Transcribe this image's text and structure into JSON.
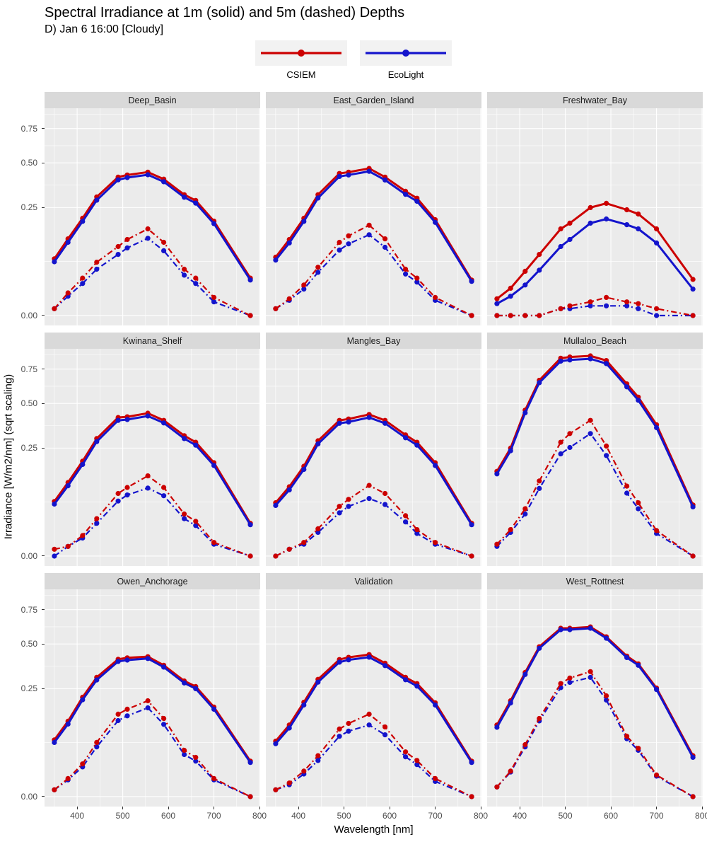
{
  "header": {
    "title": "Spectral Irradiance at 1m (solid) and 5m (dashed) Depths",
    "subtitle": "D) Jan 6 16:00 [Cloudy]"
  },
  "legend": {
    "items": [
      {
        "label": "CSIEM",
        "color": "#CC0000"
      },
      {
        "label": "EcoLight",
        "color": "#1414CC"
      }
    ]
  },
  "axes": {
    "x_title": "Wavelength [nm]",
    "y_title": "Irradiance [W/m2/nm] (sqrt scaling)",
    "x_tick_values": [
      400,
      500,
      600,
      700,
      800
    ],
    "x_tick_labels": [
      "400",
      "500",
      "600",
      "700",
      "800"
    ],
    "y_tick_values": [
      0,
      0.25,
      0.5,
      0.75
    ],
    "y_tick_labels": [
      "0.00",
      "0.25",
      "0.50",
      "0.75"
    ]
  },
  "colors": {
    "panel_bg": "#EBEBEB",
    "strip_bg": "#D9D9D9",
    "grid": "#FFFFFF",
    "tick_text": "#4D4D4D",
    "csiem": "#CC0000",
    "ecolight": "#1414CC"
  },
  "chart_data": {
    "type": "line",
    "title": "Spectral Irradiance at 1m (solid) and 5m (dashed) Depths",
    "subtitle": "D) Jan 6 16:00 [Cloudy]",
    "xlabel": "Wavelength [nm]",
    "ylabel": "Irradiance [W/m2/nm] (sqrt scaling)",
    "y_scale": "sqrt",
    "x_range": [
      328.5,
      801.5
    ],
    "y_range_sqrt_space": [
      -0.046,
      0.96
    ],
    "grid": true,
    "legend_position": "top",
    "x": [
      350,
      380,
      412,
      443,
      490,
      510,
      555,
      590,
      635,
      660,
      700,
      780
    ],
    "series_meta": [
      {
        "key": "csiem_1m",
        "model": "CSIEM",
        "depth": "1m",
        "style": "solid",
        "color": "#CC0000"
      },
      {
        "key": "ecolight_1m",
        "model": "EcoLight",
        "depth": "1m",
        "style": "solid",
        "color": "#1414CC"
      },
      {
        "key": "ecolight_5m",
        "model": "EcoLight",
        "depth": "5m",
        "style": "dashed",
        "color": "#1414CC"
      },
      {
        "key": "csiem_5m",
        "model": "CSIEM",
        "depth": "5m",
        "style": "dashed",
        "color": "#CC0000"
      }
    ],
    "facets": [
      {
        "name": "Deep_Basin",
        "csiem_1m": [
          0.069,
          0.126,
          0.203,
          0.302,
          0.411,
          0.424,
          0.441,
          0.399,
          0.313,
          0.284,
          0.191,
          0.03
        ],
        "ecolight_1m": [
          0.062,
          0.115,
          0.19,
          0.285,
          0.395,
          0.408,
          0.425,
          0.384,
          0.3,
          0.271,
          0.181,
          0.027
        ],
        "csiem_5m": [
          0.001,
          0.011,
          0.03,
          0.061,
          0.102,
          0.124,
          0.161,
          0.115,
          0.046,
          0.03,
          0.007,
          0.0
        ],
        "ecolight_5m": [
          0.001,
          0.008,
          0.022,
          0.046,
          0.08,
          0.098,
          0.128,
          0.09,
          0.035,
          0.022,
          0.004,
          0.0
        ]
      },
      {
        "name": "East_Garden_Island",
        "csiem_1m": [
          0.073,
          0.124,
          0.203,
          0.313,
          0.433,
          0.441,
          0.464,
          0.411,
          0.331,
          0.295,
          0.197,
          0.027
        ],
        "ecolight_1m": [
          0.066,
          0.113,
          0.19,
          0.296,
          0.415,
          0.424,
          0.446,
          0.394,
          0.315,
          0.28,
          0.186,
          0.025
        ],
        "csiem_5m": [
          0.001,
          0.006,
          0.02,
          0.05,
          0.115,
          0.136,
          0.175,
          0.126,
          0.046,
          0.03,
          0.007,
          0.0
        ],
        "ecolight_5m": [
          0.001,
          0.005,
          0.015,
          0.04,
          0.092,
          0.11,
          0.14,
          0.1,
          0.037,
          0.024,
          0.005,
          0.0
        ]
      },
      {
        "name": "Freshwater_Bay",
        "csiem_1m": [
          0.006,
          0.016,
          0.042,
          0.08,
          0.161,
          0.183,
          0.25,
          0.27,
          0.24,
          0.221,
          0.161,
          0.028
        ],
        "ecolight_1m": [
          0.003,
          0.008,
          0.02,
          0.044,
          0.102,
          0.124,
          0.183,
          0.2,
          0.177,
          0.161,
          0.113,
          0.015
        ],
        "csiem_5m": [
          0.0,
          0.0,
          0.0,
          0.0,
          0.001,
          0.002,
          0.004,
          0.007,
          0.004,
          0.003,
          0.001,
          0.0
        ],
        "ecolight_5m": [
          0.0,
          0.0,
          0.0,
          0.0,
          0.001,
          0.001,
          0.002,
          0.002,
          0.002,
          0.001,
          0.0,
          0.0
        ]
      },
      {
        "name": "Kwinana_Shelf",
        "csiem_1m": [
          0.064,
          0.116,
          0.193,
          0.296,
          0.412,
          0.416,
          0.438,
          0.395,
          0.311,
          0.278,
          0.187,
          0.023
        ],
        "ecolight_1m": [
          0.058,
          0.106,
          0.18,
          0.281,
          0.395,
          0.4,
          0.421,
          0.38,
          0.296,
          0.264,
          0.176,
          0.021
        ],
        "csiem_5m": [
          0.001,
          0.002,
          0.009,
          0.03,
          0.084,
          0.101,
          0.138,
          0.101,
          0.038,
          0.026,
          0.004,
          0.0
        ],
        "ecolight_5m": [
          0.0,
          0.002,
          0.007,
          0.023,
          0.065,
          0.08,
          0.099,
          0.078,
          0.03,
          0.02,
          0.003,
          0.0
        ]
      },
      {
        "name": "Mangles_Bay",
        "csiem_1m": [
          0.061,
          0.103,
          0.173,
          0.285,
          0.395,
          0.403,
          0.43,
          0.395,
          0.315,
          0.278,
          0.187,
          0.023
        ],
        "ecolight_1m": [
          0.055,
          0.094,
          0.161,
          0.27,
          0.378,
          0.386,
          0.412,
          0.378,
          0.3,
          0.264,
          0.176,
          0.021
        ],
        "csiem_5m": [
          0.0,
          0.001,
          0.004,
          0.016,
          0.053,
          0.069,
          0.107,
          0.084,
          0.035,
          0.015,
          0.004,
          0.0
        ],
        "ecolight_5m": [
          0.0,
          0.001,
          0.003,
          0.012,
          0.04,
          0.053,
          0.071,
          0.057,
          0.025,
          0.011,
          0.003,
          0.0
        ]
      },
      {
        "name": "Mullaloo_Beach",
        "csiem_1m": [
          0.154,
          0.25,
          0.457,
          0.663,
          0.84,
          0.85,
          0.86,
          0.82,
          0.636,
          0.542,
          0.37,
          0.056
        ],
        "ecolight_1m": [
          0.145,
          0.238,
          0.44,
          0.645,
          0.815,
          0.825,
          0.835,
          0.795,
          0.614,
          0.521,
          0.354,
          0.052
        ],
        "csiem_5m": [
          0.003,
          0.015,
          0.048,
          0.121,
          0.278,
          0.322,
          0.395,
          0.26,
          0.105,
          0.061,
          0.014,
          0.0
        ],
        "ecolight_5m": [
          0.002,
          0.012,
          0.038,
          0.098,
          0.224,
          0.253,
          0.322,
          0.217,
          0.085,
          0.048,
          0.011,
          0.0
        ]
      },
      {
        "name": "Owen_Anchorage",
        "csiem_1m": [
          0.069,
          0.122,
          0.212,
          0.305,
          0.405,
          0.413,
          0.42,
          0.37,
          0.287,
          0.26,
          0.172,
          0.027
        ],
        "ecolight_1m": [
          0.063,
          0.113,
          0.201,
          0.292,
          0.392,
          0.4,
          0.409,
          0.36,
          0.277,
          0.25,
          0.164,
          0.025
        ],
        "csiem_5m": [
          0.001,
          0.007,
          0.023,
          0.063,
          0.146,
          0.164,
          0.197,
          0.131,
          0.046,
          0.033,
          0.007,
          0.0
        ],
        "ecolight_5m": [
          0.001,
          0.006,
          0.019,
          0.053,
          0.124,
          0.14,
          0.169,
          0.112,
          0.038,
          0.027,
          0.006,
          0.0
        ]
      },
      {
        "name": "Validation",
        "csiem_1m": [
          0.066,
          0.11,
          0.191,
          0.295,
          0.403,
          0.416,
          0.433,
          0.382,
          0.305,
          0.274,
          0.189,
          0.027
        ],
        "ecolight_1m": [
          0.06,
          0.101,
          0.18,
          0.281,
          0.388,
          0.401,
          0.417,
          0.368,
          0.293,
          0.262,
          0.18,
          0.025
        ],
        "csiem_5m": [
          0.001,
          0.004,
          0.014,
          0.036,
          0.098,
          0.115,
          0.146,
          0.104,
          0.043,
          0.028,
          0.007,
          0.0
        ],
        "ecolight_5m": [
          0.001,
          0.003,
          0.011,
          0.028,
          0.078,
          0.092,
          0.11,
          0.082,
          0.034,
          0.022,
          0.005,
          0.0
        ]
      },
      {
        "name": "West_Rottnest",
        "csiem_1m": [
          0.11,
          0.197,
          0.331,
          0.482,
          0.608,
          0.608,
          0.618,
          0.548,
          0.424,
          0.378,
          0.253,
          0.036
        ],
        "ecolight_1m": [
          0.103,
          0.188,
          0.32,
          0.472,
          0.598,
          0.598,
          0.608,
          0.538,
          0.415,
          0.37,
          0.246,
          0.033
        ],
        "csiem_5m": [
          0.002,
          0.014,
          0.058,
          0.131,
          0.274,
          0.302,
          0.335,
          0.218,
          0.078,
          0.05,
          0.01,
          0.0
        ],
        "ecolight_5m": [
          0.002,
          0.013,
          0.053,
          0.123,
          0.255,
          0.28,
          0.305,
          0.2,
          0.072,
          0.046,
          0.009,
          0.0
        ]
      }
    ]
  }
}
